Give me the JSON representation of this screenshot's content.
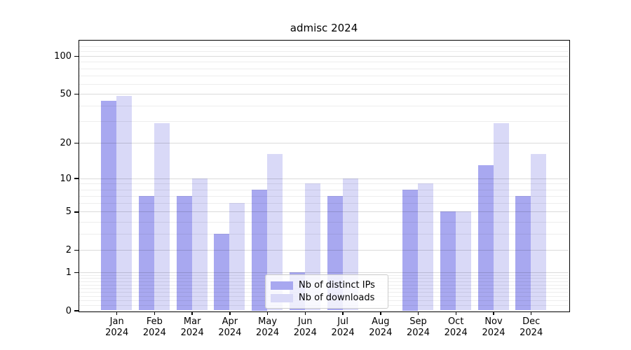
{
  "title": "admisc 2024",
  "chart_data": {
    "type": "bar",
    "title": "admisc 2024",
    "categories": [
      "Jan 2024",
      "Feb 2024",
      "Mar 2024",
      "Apr 2024",
      "May 2024",
      "Jun 2024",
      "Jul 2024",
      "Aug 2024",
      "Sep 2024",
      "Oct 2024",
      "Nov 2024",
      "Dec 2024"
    ],
    "series": [
      {
        "name": "Nb of distinct IPs",
        "color": "#a8a8f0",
        "values": [
          44,
          7,
          7,
          3,
          8,
          1,
          7,
          0,
          8,
          5,
          13,
          7
        ]
      },
      {
        "name": "Nb of downloads",
        "color": "#d9d9f7",
        "values": [
          48,
          29,
          10,
          6,
          16,
          9,
          10,
          0,
          9,
          5,
          29,
          16
        ]
      }
    ],
    "xlabel": "",
    "ylabel": "",
    "y_scale": "log10(value+1)",
    "y_ticks": [
      0,
      1,
      2,
      5,
      10,
      20,
      50,
      100
    ],
    "y_minor_gridlines": [
      0.1,
      0.2,
      0.3,
      0.4,
      0.5,
      0.6,
      0.7,
      0.8,
      0.9,
      3,
      4,
      6,
      7,
      8,
      9,
      30,
      40,
      60,
      70,
      80,
      90,
      110,
      120
    ],
    "ylim": [
      0,
      130
    ],
    "grid": "horizontal",
    "legend_position": "lower-center-inside"
  }
}
